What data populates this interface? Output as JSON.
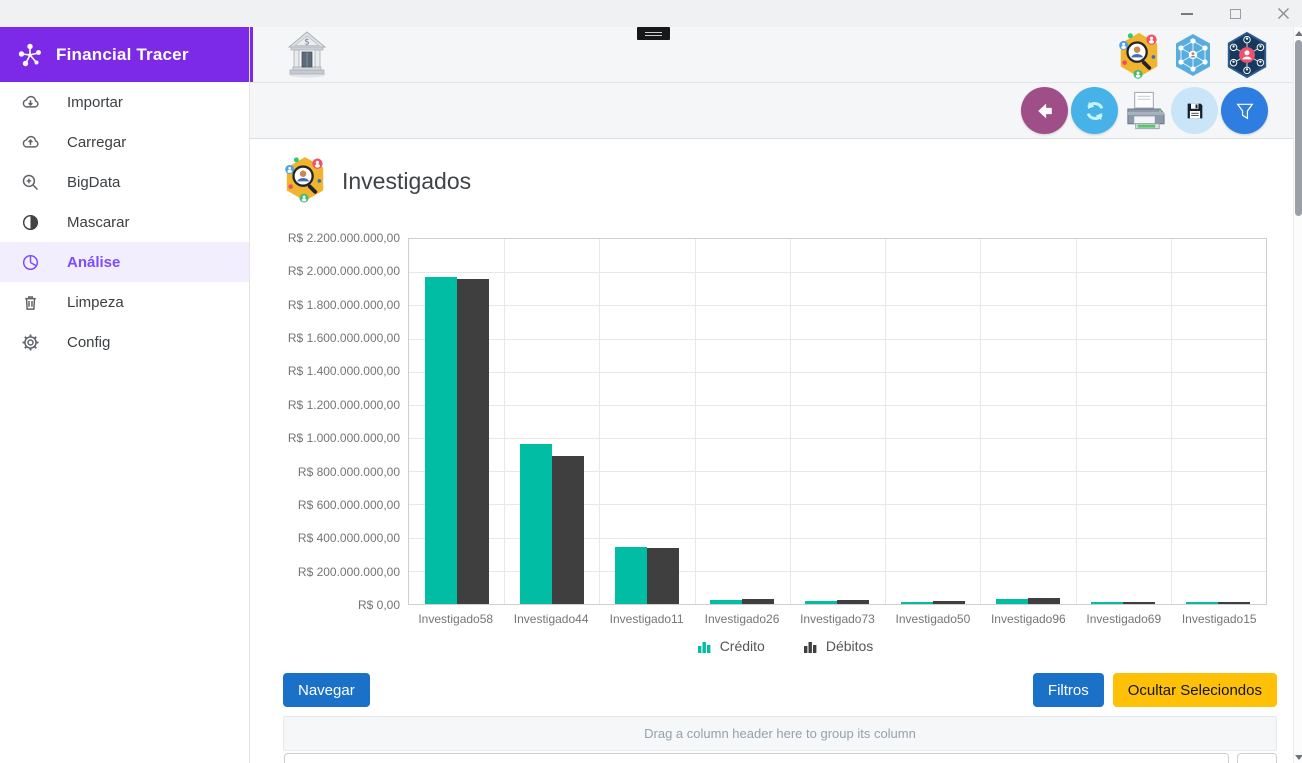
{
  "sidebar": {
    "brand": "Financial Tracer",
    "items": [
      {
        "label": "Importar",
        "icon": "cloud-download-icon"
      },
      {
        "label": "Carregar",
        "icon": "cloud-upload-icon"
      },
      {
        "label": "BigData",
        "icon": "zoom-in-icon"
      },
      {
        "label": "Mascarar",
        "icon": "contrast-icon"
      },
      {
        "label": "Análise",
        "icon": "pie-chart-icon",
        "active": true
      },
      {
        "label": "Limpeza",
        "icon": "trash-icon"
      },
      {
        "label": "Config",
        "icon": "gear-icon"
      }
    ]
  },
  "header": {
    "icons": [
      "bank-icon",
      "menu-handle",
      "investigated-search-hex-icon",
      "network-people-hex-icon",
      "entity-graph-hex-icon"
    ]
  },
  "toolbar": {
    "icons": [
      "back-icon",
      "refresh-icon",
      "print-icon",
      "save-icon",
      "filter-icon"
    ]
  },
  "main": {
    "title": "Investigados",
    "navegar_label": "Navegar",
    "filtros_label": "Filtros",
    "ocultar_label": "Ocultar Seleciondos",
    "grid_group_hint": "Drag a column header here to group its column"
  },
  "colors": {
    "accent_purple": "#7d2ae8",
    "active_item_purple": "#7c4dff",
    "credit_teal": "#00bda4",
    "debit_dark": "#3f3f3f",
    "button_blue": "#1b71c8",
    "button_amber": "#ffc107"
  },
  "chart_data": {
    "type": "bar",
    "title": "Investigados",
    "categories": [
      "Investigado58",
      "Investigado44",
      "Investigado11",
      "Investigado26",
      "Investigado73",
      "Investigado50",
      "Investigado96",
      "Investigado69",
      "Investigado15"
    ],
    "series": [
      {
        "name": "Crédito",
        "color": "#00bda4",
        "values": [
          1960000000,
          960000000,
          340000000,
          25000000,
          20000000,
          15000000,
          30000000,
          12000000,
          8000000
        ]
      },
      {
        "name": "Débitos",
        "color": "#3f3f3f",
        "values": [
          1950000000,
          890000000,
          335000000,
          30000000,
          22000000,
          18000000,
          34000000,
          15000000,
          12000000
        ]
      }
    ],
    "ylim": [
      0,
      2200000000
    ],
    "y_tick_step": 200000000,
    "y_tick_labels": [
      "R$ 2.200.000.000,00",
      "R$ 2.000.000.000,00",
      "R$ 1.800.000.000,00",
      "R$ 1.600.000.000,00",
      "R$ 1.400.000.000,00",
      "R$ 1.200.000.000,00",
      "R$ 1.000.000.000,00",
      "R$ 800.000.000,00",
      "R$ 600.000.000,00",
      "R$ 400.000.000,00",
      "R$ 200.000.000,00",
      "R$ 0,00"
    ],
    "grid": true,
    "legend_position": "bottom",
    "xlabel": "",
    "ylabel": ""
  }
}
